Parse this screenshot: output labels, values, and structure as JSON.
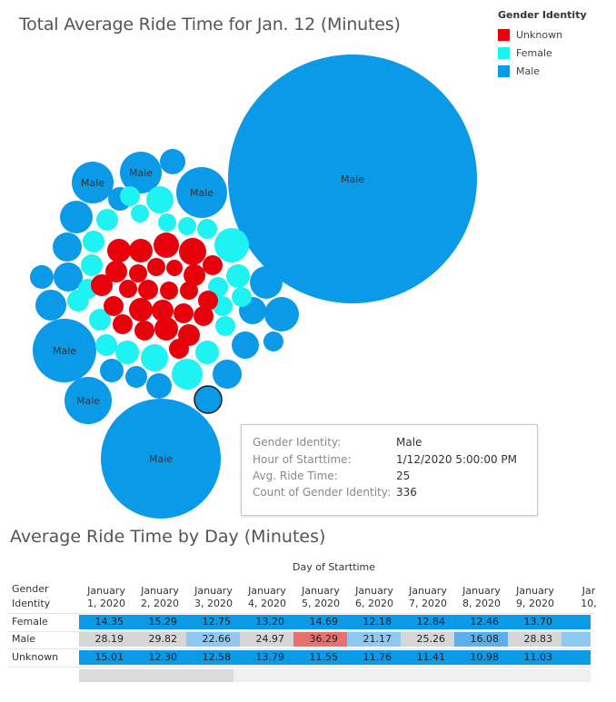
{
  "chart_data": [
    {
      "type": "bubble",
      "title": "Total Average Ride Time for Jan. 12 (Minutes)",
      "legend": {
        "title": "Gender Identity",
        "placement": "top-right",
        "items": [
          {
            "label": "Unknown",
            "color": "#e8000b"
          },
          {
            "label": "Female",
            "color": "#1ff2f2"
          },
          {
            "label": "Male",
            "color": "#0a9ae8"
          }
        ]
      },
      "bubble_labels": [
        "Male",
        "Male",
        "Male",
        "Male",
        "Male",
        "Male",
        "Male"
      ],
      "tooltip": {
        "rows": [
          {
            "label": "Gender Identity:",
            "value": "Male"
          },
          {
            "label": "Hour of Starttime:",
            "value": "1/12/2020 5:00:00 PM"
          },
          {
            "label": "Avg. Ride Time:",
            "value": "25"
          },
          {
            "label": "Count of Gender Identity:",
            "value": "336"
          }
        ]
      }
    },
    {
      "type": "table",
      "title": "Average Ride Time by Day (Minutes)",
      "column_header": "Day of Starttime",
      "row_header": [
        "Gender",
        "Identity"
      ],
      "columns": [
        [
          "January",
          "1, 2020"
        ],
        [
          "January",
          "2, 2020"
        ],
        [
          "January",
          "3, 2020"
        ],
        [
          "January",
          "4, 2020"
        ],
        [
          "January",
          "5, 2020"
        ],
        [
          "January",
          "6, 2020"
        ],
        [
          "January",
          "7, 2020"
        ],
        [
          "January",
          "8, 2020"
        ],
        [
          "January",
          "9, 2020"
        ],
        [
          "Jar",
          "10,"
        ]
      ],
      "rows": [
        {
          "label": "Female",
          "values": [
            "14.35",
            "15.29",
            "12.75",
            "13.20",
            "14.69",
            "12.18",
            "12.84",
            "12.46",
            "13.70",
            ""
          ]
        },
        {
          "label": "Male",
          "values": [
            "28.19",
            "29.82",
            "22.66",
            "24.97",
            "36.29",
            "21.17",
            "25.26",
            "16.08",
            "28.83",
            ""
          ]
        },
        {
          "label": "Unknown",
          "values": [
            "15.01",
            "12.30",
            "12.58",
            "13.79",
            "11.55",
            "11.76",
            "11.41",
            "10.98",
            "11.03",
            ""
          ]
        }
      ],
      "highlight_colors": {
        "Female": [
          "#0a9ae8",
          "#0a9ae8",
          "#0a9ae8",
          "#0a9ae8",
          "#0a9ae8",
          "#0a9ae8",
          "#0a9ae8",
          "#0a9ae8",
          "#0a9ae8",
          "#0a9ae8"
        ],
        "Male": [
          "#d6d6d6",
          "#d6d6d6",
          "#8fc8f0",
          "#d6d6d6",
          "#e8706e",
          "#8fc8f0",
          "#d6d6d6",
          "#5bb0ec",
          "#d6d6d6",
          "#8fc8f0"
        ],
        "Unknown": [
          "#0a9ae8",
          "#0a9ae8",
          "#0a9ae8",
          "#0a9ae8",
          "#0a9ae8",
          "#0a9ae8",
          "#0a9ae8",
          "#0a9ae8",
          "#0a9ae8",
          "#0a9ae8"
        ]
      }
    }
  ]
}
